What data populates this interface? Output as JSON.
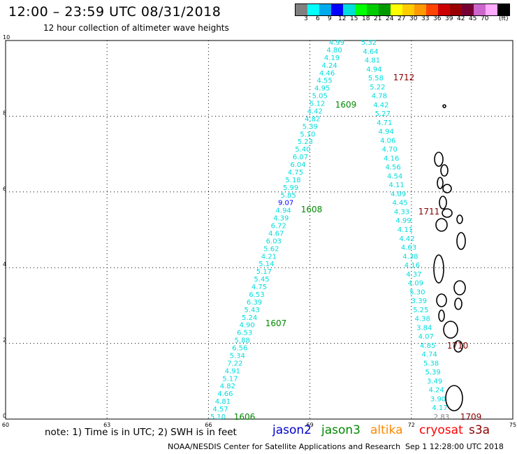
{
  "header": {
    "title": "12:00 – 23:59 UTC 08/31/2018",
    "subtitle": "12 hour collection of altimeter wave heights"
  },
  "colorbar": {
    "colors": [
      "#808080",
      "#00ffff",
      "#00aaee",
      "#0000ff",
      "#00dddd",
      "#00ff00",
      "#00cc00",
      "#009900",
      "#ffff00",
      "#ffcc00",
      "#ff9900",
      "#ff4400",
      "#cc0000",
      "#990000",
      "#770033",
      "#cc66cc",
      "#ffaaff",
      "#000000"
    ],
    "labels": [
      "3",
      "6",
      "9",
      "12",
      "15",
      "18",
      "21",
      "24",
      "27",
      "30",
      "33",
      "36",
      "39",
      "42",
      "45",
      "70"
    ],
    "unit": "(ft)"
  },
  "axes": {
    "x_ticks": [
      "60",
      "63",
      "66",
      "69",
      "72",
      "75"
    ],
    "y_ticks": [
      "0",
      "2",
      "4",
      "6",
      "8",
      "10"
    ],
    "xlim": [
      60,
      75
    ],
    "ylim": [
      0,
      10
    ]
  },
  "tracks": [
    {
      "id": "track-1606-1609",
      "values": [
        "4.99",
        "4.80",
        "4.19",
        "4.24",
        "4.46",
        "4.55",
        "4.95",
        "5.05",
        "5.12",
        "4.42",
        "4.82",
        "5.39",
        "5.10",
        "5.23",
        "5.40",
        "6.07",
        "6.04",
        "4.75",
        "5.18",
        "5.99",
        "5.85",
        "9.07",
        "4.94",
        "4.39",
        "6.72",
        "4.67",
        "6.03",
        "5.62",
        "4.21",
        "5.14",
        "5.17",
        "5.45",
        "4.75",
        "6.53",
        "6.39",
        "5.43",
        "5.24",
        "4.90",
        "6.53",
        "5.88",
        "6.56",
        "5.34",
        "7.22",
        "4.91",
        "5.17",
        "4.82",
        "4.66",
        "4.81",
        "4.57",
        "5.10"
      ]
    },
    {
      "id": "track-1709-1712",
      "values": [
        "5.32",
        "4.64",
        "4.81",
        "4.94",
        "5.58",
        "5.22",
        "4.78",
        "4.42",
        "5.27",
        "4.71",
        "4.94",
        "4.06",
        "4.70",
        "4.16",
        "4.56",
        "4.54",
        "4.11",
        "4.09",
        "4.45",
        "4.33",
        "4.99",
        "4.11",
        "4.42",
        "4.63",
        "4.38",
        "4.16",
        "4.37",
        "4.09",
        "5.30",
        "3.39",
        "5.25",
        "4.38",
        "3.84",
        "4.07",
        "4.85",
        "4.74",
        "5.38",
        "5.39",
        "3.49",
        "4.24",
        "3.90",
        "4.17",
        "2.83"
      ]
    }
  ],
  "time_labels": [
    "1606",
    "1607",
    "1608",
    "1609",
    "1709",
    "1710",
    "1711",
    "1712"
  ],
  "note": "note: 1) Time is in UTC; 2) SWH is in feet",
  "satellites": [
    {
      "name": "jason2",
      "color": "#0000cc"
    },
    {
      "name": "jason3",
      "color": "#008800"
    },
    {
      "name": "altika",
      "color": "#ff8800"
    },
    {
      "name": "cryosat",
      "color": "#ff0000"
    },
    {
      "name": "s3a",
      "color": "#880000"
    }
  ],
  "footer": {
    "left": "NOAA/NESDIS Center for Satellite Applications and Research",
    "right": "Sep  1 12:28:00 UTC 2018"
  }
}
